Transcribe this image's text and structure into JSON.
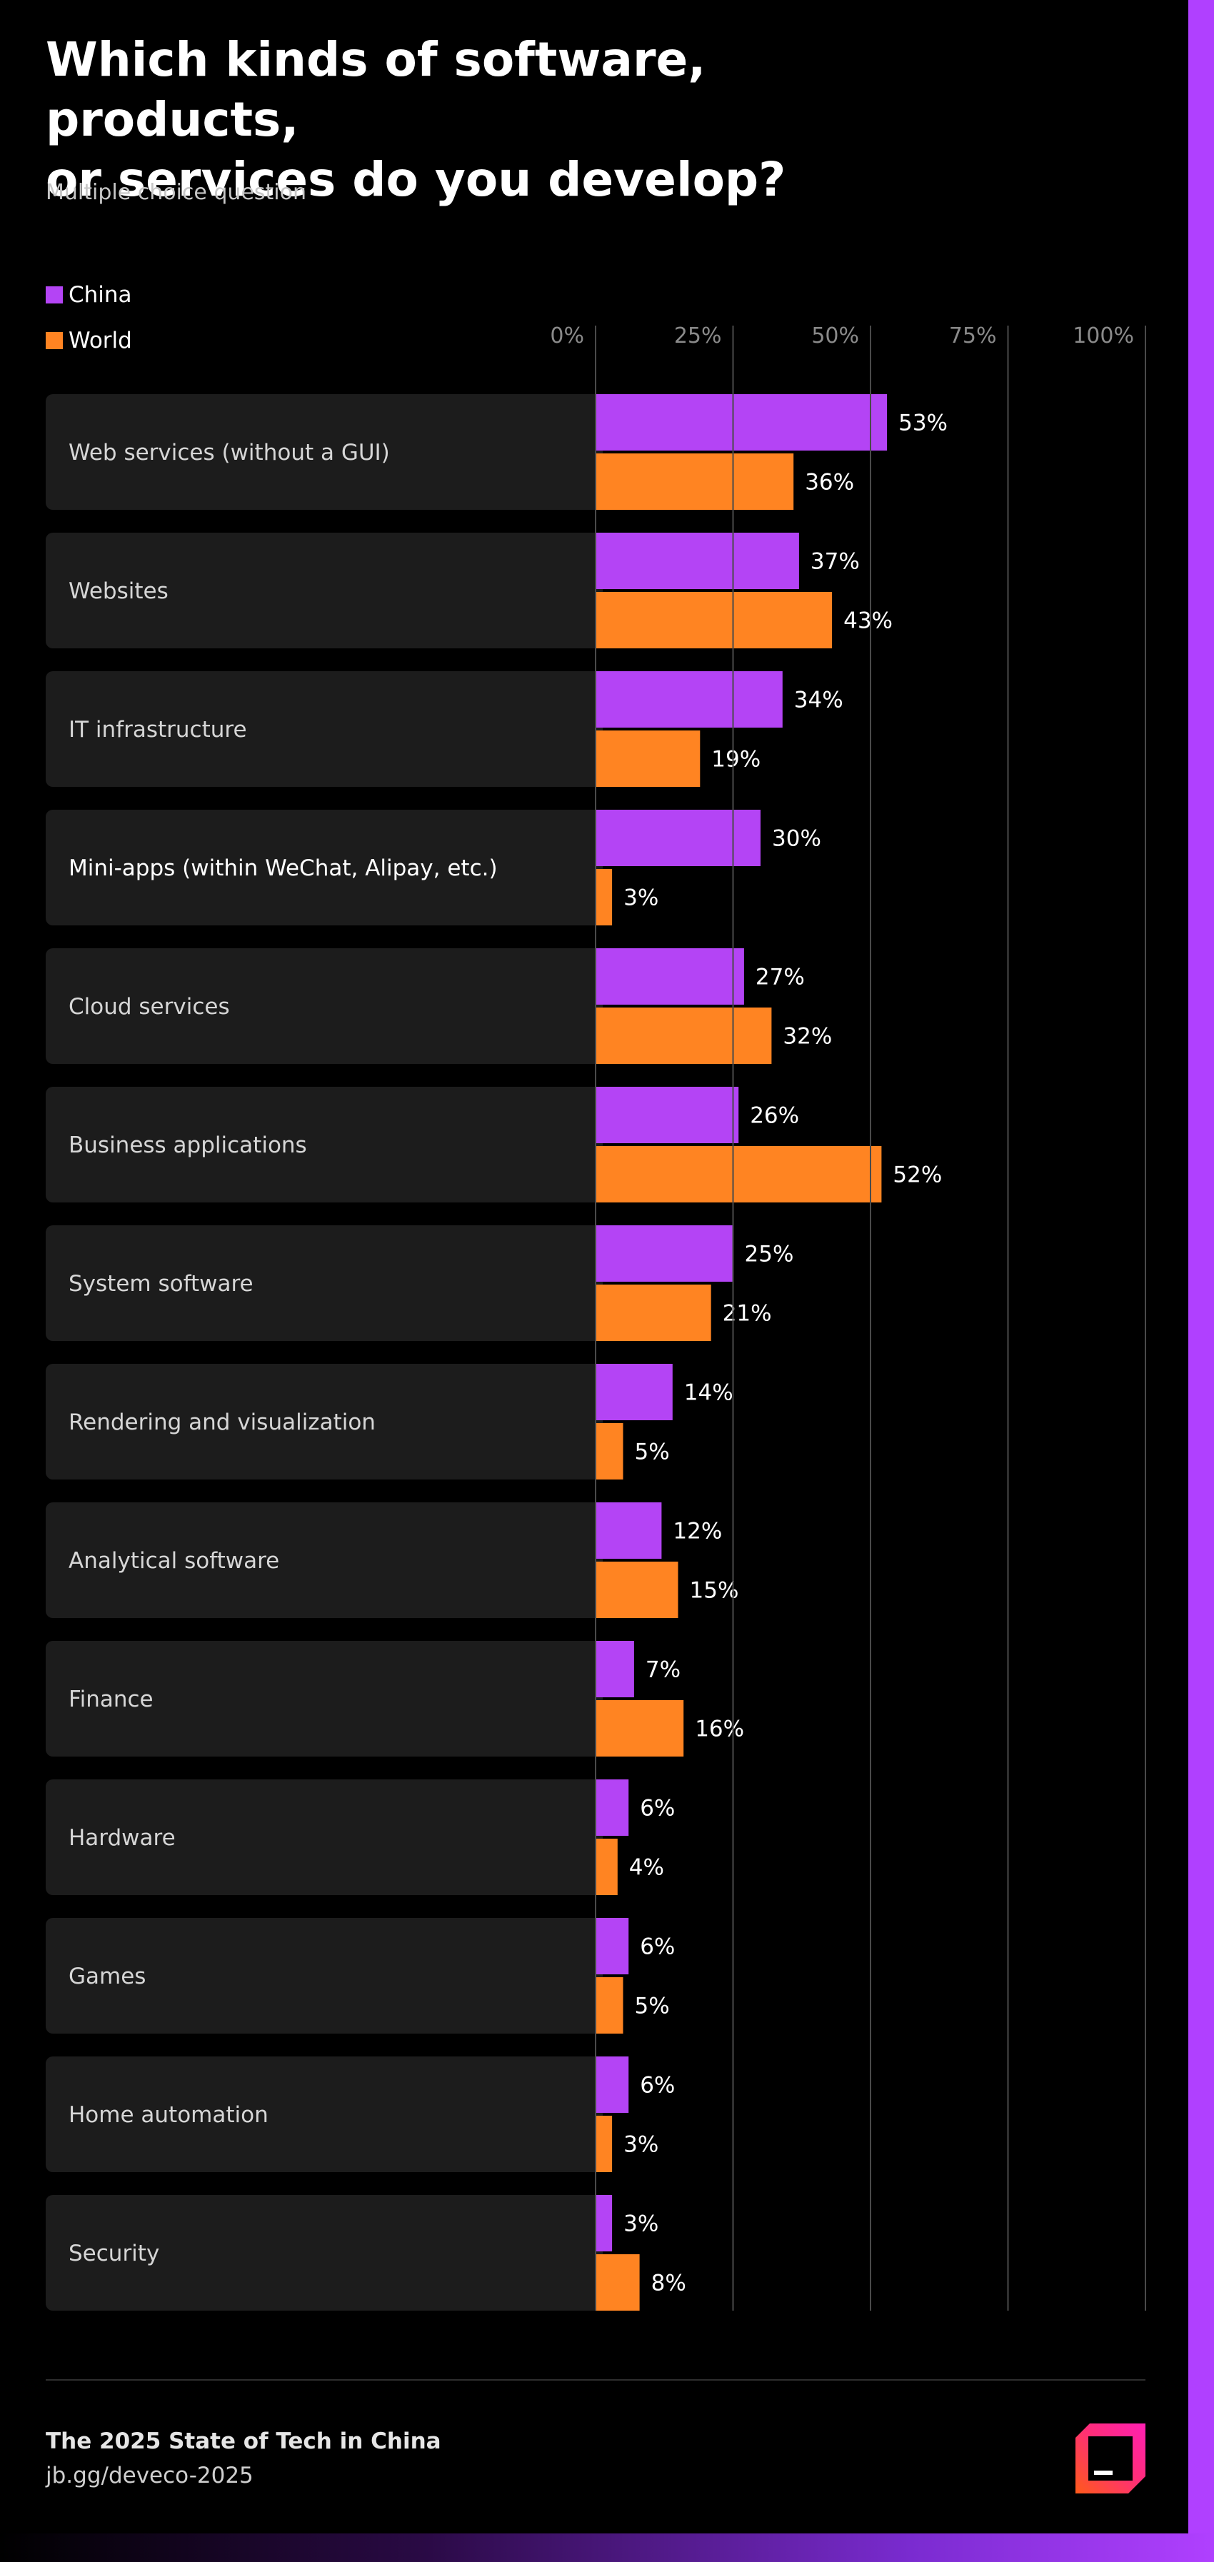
{
  "header": {
    "title": "Which kinds of software, products,\nor services do you develop?",
    "subtitle": "Multiple choice question"
  },
  "colors": {
    "china": "#b444f5",
    "world": "#ff8422",
    "row_background": "#1c1c1c",
    "gridline": "#4a4a4a",
    "tick_label": "#8a8a8a",
    "category_label": "#d6d6d6",
    "highlight_label": "#ffffff"
  },
  "footer": {
    "title": "The 2025 State of Tech in China",
    "link": "jb.gg/deveco-2025",
    "logo_icon": "jetbrains-logo-icon"
  },
  "chart_data": {
    "type": "bar",
    "orientation": "horizontal",
    "title": "Which kinds of software, products, or services do you develop?",
    "subtitle": "Multiple choice question",
    "legend": [
      "China",
      "World"
    ],
    "legend_position": "top-left",
    "xlim": [
      0,
      100
    ],
    "x_ticks": [
      "0%",
      "25%",
      "50%",
      "75%",
      "100%"
    ],
    "tick_values": [
      0,
      25,
      50,
      75,
      100
    ],
    "grid": true,
    "value_suffix": "%",
    "categories": [
      "Web services (without a GUI)",
      "Websites",
      "IT infrastructure",
      "Mini-apps (within WeChat, Alipay, etc.)",
      "Cloud services",
      "Business applications",
      "System software",
      "Rendering and visualization",
      "Analytical software",
      "Finance",
      "Hardware",
      "Games",
      "Home automation",
      "Security"
    ],
    "highlighted_category": "Mini-apps (within WeChat, Alipay, etc.)",
    "series": [
      {
        "name": "China",
        "values": [
          53,
          37,
          34,
          30,
          27,
          26,
          25,
          14,
          12,
          7,
          6,
          6,
          6,
          3
        ]
      },
      {
        "name": "World",
        "values": [
          36,
          43,
          19,
          3,
          32,
          52,
          21,
          5,
          15,
          16,
          4,
          5,
          3,
          8
        ]
      }
    ]
  }
}
